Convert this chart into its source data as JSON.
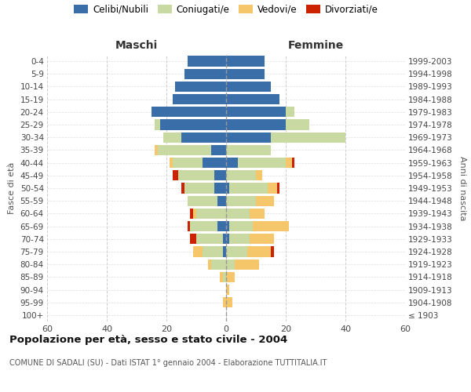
{
  "age_groups": [
    "100+",
    "95-99",
    "90-94",
    "85-89",
    "80-84",
    "75-79",
    "70-74",
    "65-69",
    "60-64",
    "55-59",
    "50-54",
    "45-49",
    "40-44",
    "35-39",
    "30-34",
    "25-29",
    "20-24",
    "15-19",
    "10-14",
    "5-9",
    "0-4"
  ],
  "birth_years": [
    "≤ 1903",
    "1904-1908",
    "1909-1913",
    "1914-1918",
    "1919-1923",
    "1924-1928",
    "1929-1933",
    "1934-1938",
    "1939-1943",
    "1944-1948",
    "1949-1953",
    "1954-1958",
    "1959-1963",
    "1964-1968",
    "1969-1973",
    "1974-1978",
    "1979-1983",
    "1984-1988",
    "1989-1993",
    "1994-1998",
    "1999-2003"
  ],
  "male": {
    "celibi": [
      0,
      0,
      0,
      0,
      0,
      1,
      1,
      3,
      0,
      3,
      4,
      4,
      8,
      5,
      15,
      22,
      25,
      18,
      17,
      14,
      13
    ],
    "coniugati": [
      0,
      0,
      0,
      1,
      5,
      7,
      9,
      9,
      10,
      10,
      10,
      12,
      10,
      18,
      6,
      2,
      0,
      0,
      0,
      0,
      0
    ],
    "vedovi": [
      0,
      1,
      0,
      1,
      1,
      3,
      0,
      0,
      1,
      0,
      0,
      0,
      1,
      1,
      0,
      0,
      0,
      0,
      0,
      0,
      0
    ],
    "divorziati": [
      0,
      0,
      0,
      0,
      0,
      0,
      2,
      1,
      1,
      0,
      1,
      2,
      0,
      0,
      0,
      0,
      0,
      0,
      0,
      0,
      0
    ]
  },
  "female": {
    "nubili": [
      0,
      0,
      0,
      0,
      0,
      0,
      1,
      1,
      0,
      0,
      1,
      0,
      4,
      0,
      15,
      20,
      20,
      18,
      15,
      13,
      13
    ],
    "coniugate": [
      0,
      0,
      0,
      0,
      3,
      7,
      7,
      8,
      8,
      10,
      13,
      10,
      16,
      15,
      25,
      8,
      3,
      0,
      0,
      0,
      0
    ],
    "vedove": [
      0,
      2,
      1,
      3,
      8,
      8,
      8,
      12,
      5,
      6,
      3,
      2,
      2,
      0,
      0,
      0,
      0,
      0,
      0,
      0,
      0
    ],
    "divorziate": [
      0,
      0,
      0,
      0,
      0,
      1,
      0,
      0,
      0,
      0,
      1,
      0,
      1,
      0,
      0,
      0,
      0,
      0,
      0,
      0,
      0
    ]
  },
  "colors": {
    "celibi": "#3a6ea8",
    "coniugati": "#c8d9a2",
    "vedovi": "#f5c76a",
    "divorziati": "#cc2200"
  },
  "title": "Popolazione per età, sesso e stato civile - 2004",
  "subtitle": "COMUNE DI SADALI (SU) - Dati ISTAT 1° gennaio 2004 - Elaborazione TUTTITALIA.IT",
  "xlabel_left": "Maschi",
  "xlabel_right": "Femmine",
  "ylabel_left": "Fasce di età",
  "ylabel_right": "Anni di nascita",
  "xlim": 60,
  "xticks": [
    60,
    40,
    20,
    0,
    20,
    40,
    60
  ],
  "legend_labels": [
    "Celibi/Nubili",
    "Coniugati/e",
    "Vedovi/e",
    "Divorziati/e"
  ],
  "background_color": "#ffffff"
}
